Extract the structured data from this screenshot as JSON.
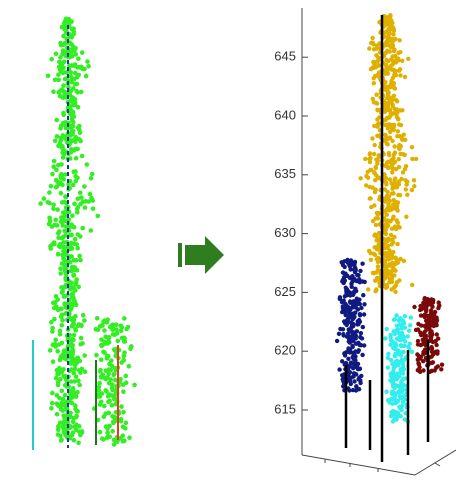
{
  "right_panel": {
    "axis_ticks": [
      615,
      620,
      625,
      630,
      635,
      640,
      645
    ]
  }
}
